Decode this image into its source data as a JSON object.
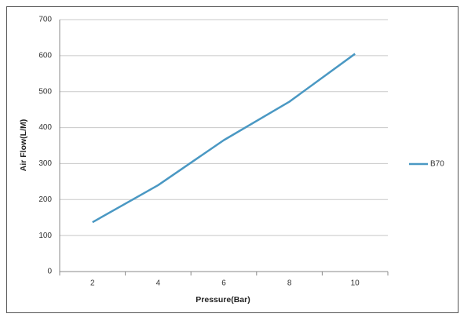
{
  "chart_data": {
    "type": "line",
    "x_label": "Pressure(Bar)",
    "y_label": "Air Flow(L/M)",
    "categories": [
      "2",
      "4",
      "6",
      "8",
      "10"
    ],
    "series": [
      {
        "name": "B70",
        "color": "#4a98c3",
        "values": [
          137,
          240,
          365,
          472,
          605
        ]
      }
    ],
    "ylim": [
      0,
      700
    ],
    "yticks": [
      0,
      100,
      200,
      300,
      400,
      500,
      600,
      700
    ],
    "grid": true,
    "legend": "right"
  }
}
